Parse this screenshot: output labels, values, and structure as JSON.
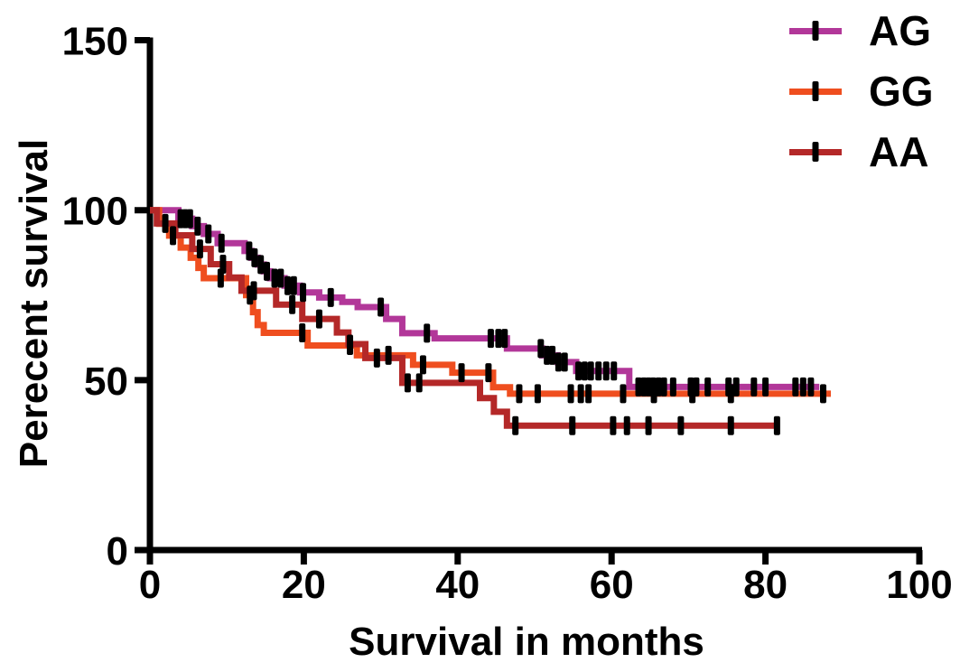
{
  "chart_data": {
    "type": "line",
    "subtype": "kaplan-meier-step-survival",
    "title": "",
    "xlabel": "Survival in months",
    "ylabel": "Perecent survival",
    "xlim": [
      0,
      100
    ],
    "ylim": [
      0,
      150
    ],
    "xticks": [
      0,
      20,
      40,
      60,
      80,
      100
    ],
    "yticks": [
      0,
      50,
      100,
      150
    ],
    "grid": false,
    "legend_position": "top-right",
    "axis_color": "#000000",
    "censor_mark_color": "#000000",
    "series": [
      {
        "name": "AG",
        "color": "#b23799",
        "end_month": 87,
        "steps": [
          [
            0,
            100
          ],
          [
            3.7,
            97.5
          ],
          [
            5.5,
            95.3
          ],
          [
            7,
            93
          ],
          [
            8.8,
            90.3
          ],
          [
            12.3,
            88
          ],
          [
            13.2,
            86
          ],
          [
            14,
            84
          ],
          [
            14.8,
            82
          ],
          [
            15.6,
            80
          ],
          [
            17.5,
            77.8
          ],
          [
            19.5,
            75.8
          ],
          [
            22,
            74.3
          ],
          [
            25,
            73
          ],
          [
            27,
            71.5
          ],
          [
            30.7,
            68
          ],
          [
            32.8,
            63.8
          ],
          [
            37,
            62.3
          ],
          [
            46.4,
            59.3
          ],
          [
            51,
            57.3
          ],
          [
            53,
            55.3
          ],
          [
            55.4,
            52.7
          ],
          [
            62.3,
            48
          ]
        ],
        "censors": [
          4,
          4.6,
          5.2,
          6.2,
          7.6,
          9.3,
          12.9,
          13.6,
          14.4,
          15.2,
          16.2,
          17,
          17.9,
          18.7,
          19.9,
          23.5,
          30,
          36,
          44.3,
          45.3,
          46.1,
          50.8,
          51.6,
          52.3,
          53.1,
          53.9,
          55.7,
          56.5,
          57.3,
          58.3,
          59.3,
          60.3,
          63.5,
          64.2,
          64.8,
          65.4,
          66.1,
          66.8,
          68,
          70.3,
          71,
          72.5,
          75.2,
          76.2,
          78.5,
          80,
          83.9,
          84.9,
          85.9
        ]
      },
      {
        "name": "GG",
        "color": "#ef4e1f",
        "end_month": 88.5,
        "steps": [
          [
            0,
            100
          ],
          [
            1.2,
            96
          ],
          [
            2.5,
            92.5
          ],
          [
            4,
            89
          ],
          [
            5.3,
            86
          ],
          [
            6.3,
            83
          ],
          [
            7,
            80
          ],
          [
            12.5,
            75
          ],
          [
            13.4,
            70
          ],
          [
            14,
            66.2
          ],
          [
            14.8,
            63.9
          ],
          [
            20.5,
            60.2
          ],
          [
            26.9,
            57.3
          ],
          [
            34.2,
            54.5
          ],
          [
            39.3,
            52.2
          ],
          [
            44.6,
            47.9
          ],
          [
            46.8,
            46
          ]
        ],
        "censors": [
          3,
          9.2,
          13,
          19.8,
          26,
          31,
          35.5,
          40.5,
          44,
          48,
          50.4,
          54.7,
          56,
          57,
          61.5,
          65.5,
          70.5,
          75.5,
          87.5
        ]
      },
      {
        "name": "AA",
        "color": "#b42828",
        "end_month": 81.5,
        "steps": [
          [
            0,
            100
          ],
          [
            0.9,
            96.1
          ],
          [
            3.3,
            92.6
          ],
          [
            5.5,
            88.6
          ],
          [
            7.9,
            84.1
          ],
          [
            10.3,
            80.2
          ],
          [
            11.9,
            76.3
          ],
          [
            16.4,
            72.2
          ],
          [
            19.8,
            68
          ],
          [
            24.3,
            64
          ],
          [
            25.8,
            60.6
          ],
          [
            28,
            56.5
          ],
          [
            32.8,
            49.2
          ],
          [
            42.9,
            44.7
          ],
          [
            44.7,
            40.7
          ],
          [
            46.4,
            36.6
          ]
        ],
        "censors": [
          2,
          6.5,
          9.5,
          13.5,
          18.5,
          22,
          26,
          29.5,
          33.5,
          35,
          47.5,
          54.9,
          60.2,
          62,
          64.8,
          69,
          75.5,
          81.5
        ]
      }
    ]
  }
}
